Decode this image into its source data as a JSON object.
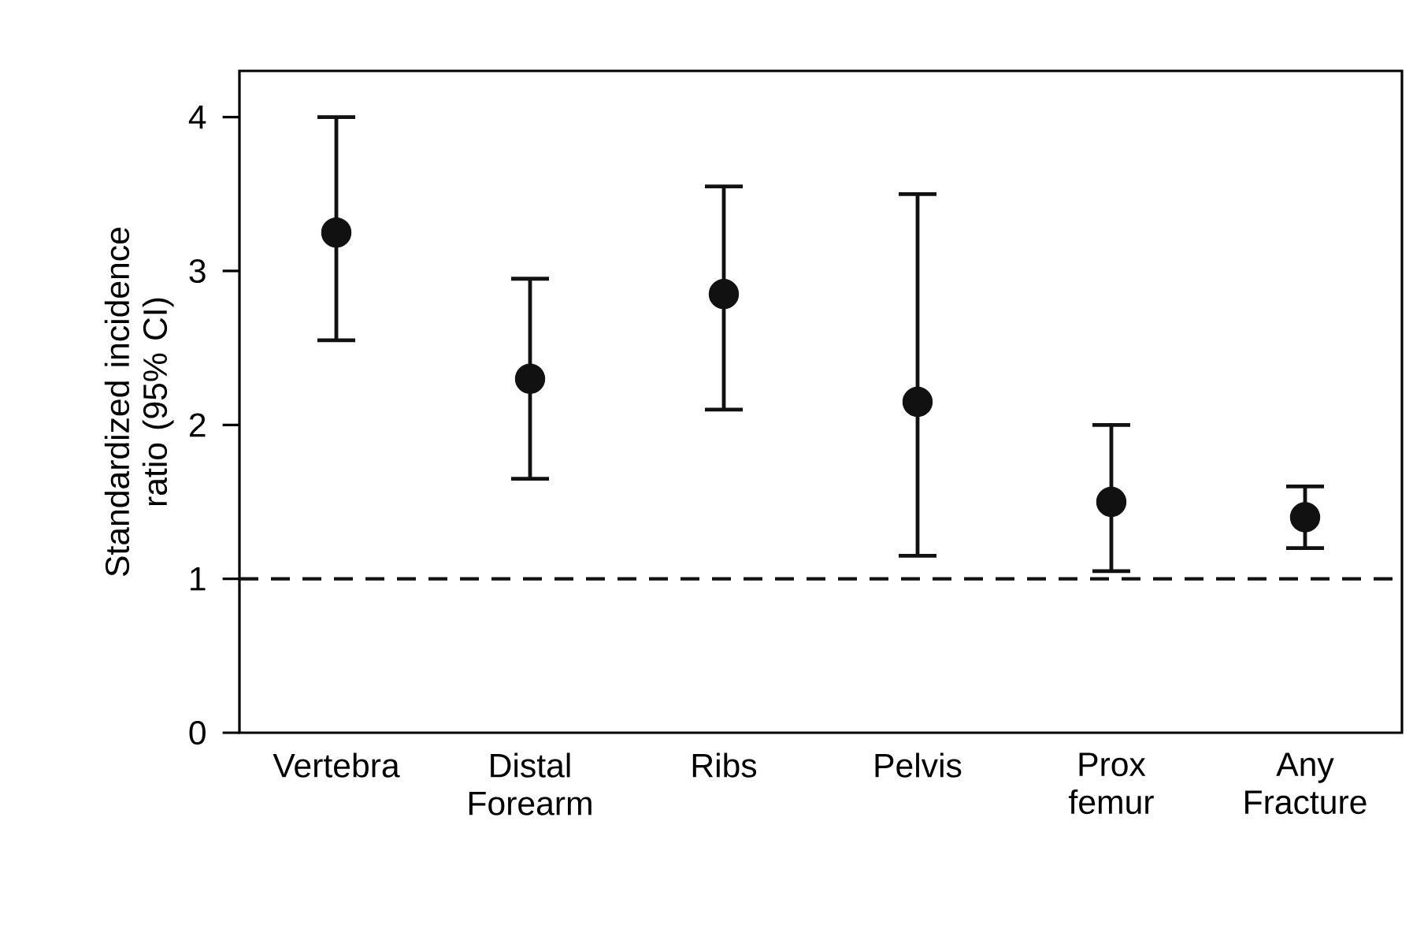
{
  "chart_data": {
    "type": "scatter",
    "ylabel": "Standardized incidence ratio (95% CI)",
    "categories": [
      "Vertebra",
      "Distal Forearm",
      "Ribs",
      "Pelvis",
      "Prox femur",
      "Any Fracture"
    ],
    "values": [
      3.25,
      2.3,
      2.85,
      2.15,
      1.5,
      1.4
    ],
    "errors": [
      [
        2.55,
        4.0
      ],
      [
        1.65,
        2.95
      ],
      [
        2.1,
        3.55
      ],
      [
        1.15,
        3.5
      ],
      [
        1.05,
        2.0
      ],
      [
        1.2,
        1.6
      ]
    ],
    "color": "#111111",
    "marker": "circle",
    "ylim": [
      0,
      4.3
    ],
    "yticks": [
      0,
      1,
      2,
      3,
      4
    ],
    "ref_lines": [
      {
        "axis": "y",
        "value": 1,
        "line_style": "dashed",
        "color": "#111111"
      }
    ]
  }
}
